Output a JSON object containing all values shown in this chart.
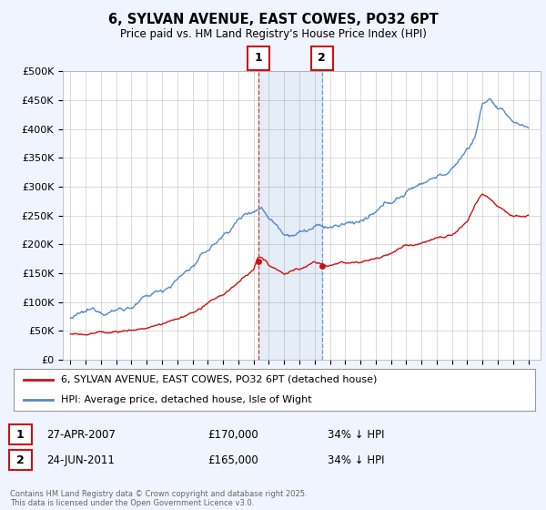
{
  "title": "6, SYLVAN AVENUE, EAST COWES, PO32 6PT",
  "subtitle": "Price paid vs. HM Land Registry's House Price Index (HPI)",
  "ylabel_ticks": [
    "£0",
    "£50K",
    "£100K",
    "£150K",
    "£200K",
    "£250K",
    "£300K",
    "£350K",
    "£400K",
    "£450K",
    "£500K"
  ],
  "ytick_values": [
    0,
    50000,
    100000,
    150000,
    200000,
    250000,
    300000,
    350000,
    400000,
    450000,
    500000
  ],
  "ylim": [
    0,
    500000
  ],
  "hpi_color": "#5588cc",
  "price_color": "#cc1111",
  "transaction1": {
    "label": "1",
    "date": "27-APR-2007",
    "price": "£170,000",
    "hpi": "34% ↓ HPI",
    "x_year": 2007.32
  },
  "transaction2": {
    "label": "2",
    "date": "24-JUN-2011",
    "price": "£165,000",
    "hpi": "34% ↓ HPI",
    "x_year": 2011.48
  },
  "legend_label_red": "6, SYLVAN AVENUE, EAST COWES, PO32 6PT (detached house)",
  "legend_label_blue": "HPI: Average price, detached house, Isle of Wight",
  "footer": "Contains HM Land Registry data © Crown copyright and database right 2025.\nThis data is licensed under the Open Government Licence v3.0.",
  "background_color": "#f0f4ff",
  "plot_bg_color": "#ffffff",
  "xlim_start": 1994.5,
  "xlim_end": 2025.8
}
